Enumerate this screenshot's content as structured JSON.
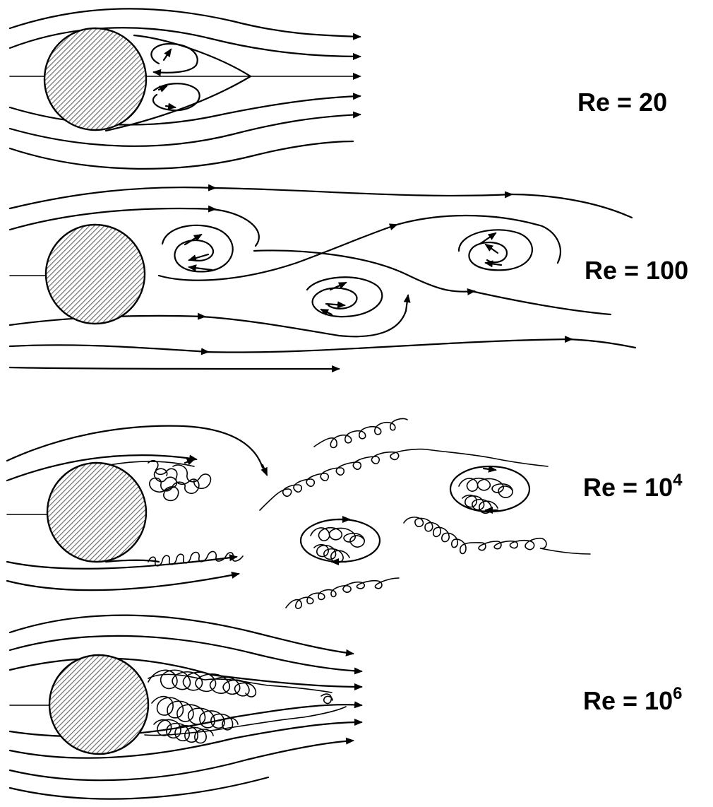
{
  "panels": [
    {
      "re_text": "Re = 20",
      "exponent": ""
    },
    {
      "re_text": "Re = 100",
      "exponent": ""
    },
    {
      "re_text": "Re = 10",
      "exponent": "4"
    },
    {
      "re_text": "Re = 10",
      "exponent": "6"
    }
  ],
  "colors": {
    "ink": "#000000",
    "background": "#ffffff",
    "hatch": "#6e6e6e"
  }
}
